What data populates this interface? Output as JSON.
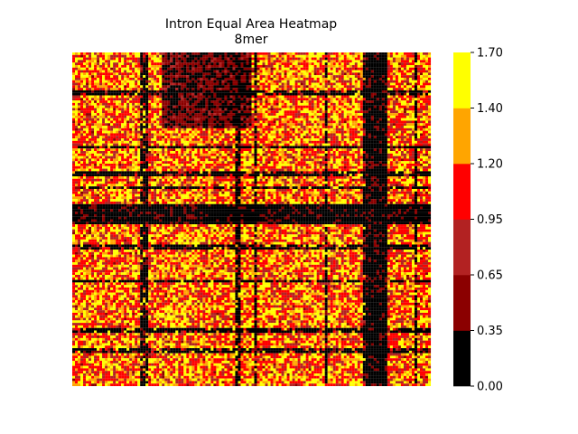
{
  "chart_data": {
    "type": "heatmap",
    "title": "Intron Equal Area Heatmap",
    "subtitle": "8mer",
    "grid": false,
    "colorbar": {
      "boundaries": [
        0.0,
        0.35,
        0.65,
        0.95,
        1.2,
        1.4,
        1.7
      ],
      "tick_labels": [
        "0.00",
        "0.35",
        "0.65",
        "0.95",
        "1.20",
        "1.40",
        "1.70"
      ],
      "colors": [
        "#000000",
        "#8b0000",
        "#b22222",
        "#ff0000",
        "#ffa500",
        "#ffff00"
      ]
    },
    "matrix_size": 132,
    "row_band_patterns": [
      {
        "rows": [
          0,
          30
        ],
        "cols": [
          33,
          66
        ],
        "value_range": [
          0.1,
          0.7
        ],
        "description_value": "low"
      },
      {
        "rows": [
          60,
          68
        ],
        "cols": [
          0,
          132
        ],
        "value_range": [
          0.0,
          0.5
        ]
      },
      {
        "rows": [
          0,
          132
        ],
        "cols": [
          108,
          116
        ],
        "value_range": [
          0.0,
          0.55
        ]
      }
    ],
    "dark_lines_rows": [
      15,
      16,
      37,
      47,
      48,
      53,
      60,
      61,
      62,
      63,
      64,
      65,
      66,
      67,
      76,
      77,
      90,
      109,
      110,
      117,
      118
    ],
    "dark_lines_cols": [
      25,
      26,
      27,
      60,
      61,
      67,
      93,
      107,
      108,
      109,
      110,
      111,
      112,
      113,
      114,
      115,
      126
    ]
  }
}
